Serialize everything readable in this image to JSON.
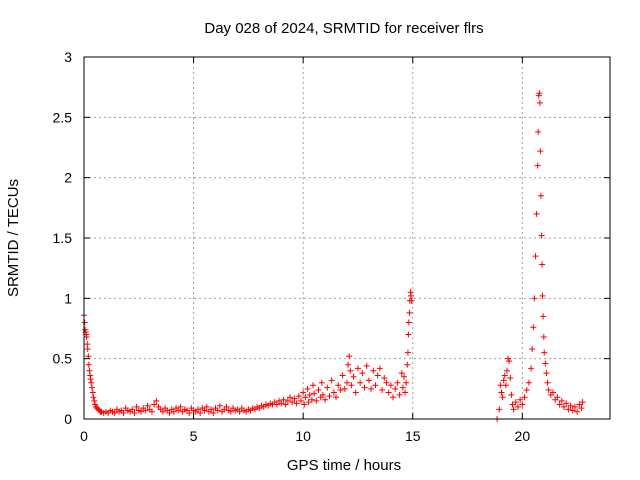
{
  "chart_data": {
    "type": "scatter",
    "title": "Day 028 of 2024, SRMTID for receiver flrs",
    "xlabel": "GPS time / hours",
    "ylabel": "SRMTID / TECUs",
    "xlim": [
      0,
      24
    ],
    "ylim": [
      0,
      3
    ],
    "xticks": [
      0,
      5,
      10,
      15,
      20
    ],
    "xtick_labels": [
      "0",
      "5",
      "10",
      "15",
      "20"
    ],
    "yticks": [
      0,
      0.5,
      1,
      1.5,
      2,
      2.5,
      3
    ],
    "ytick_labels": [
      "0",
      "0.5",
      "1",
      "1.5",
      "2",
      "2.5",
      "3"
    ],
    "grid": true,
    "marker": "+",
    "color": "#ff0000",
    "series": [
      {
        "name": "SRMTID",
        "points": [
          [
            0.0,
            0.86
          ],
          [
            0.03,
            0.8
          ],
          [
            0.05,
            0.74
          ],
          [
            0.08,
            0.72
          ],
          [
            0.1,
            0.7
          ],
          [
            0.12,
            0.68
          ],
          [
            0.15,
            0.62
          ],
          [
            0.17,
            0.58
          ],
          [
            0.2,
            0.52
          ],
          [
            0.22,
            0.45
          ],
          [
            0.25,
            0.4
          ],
          [
            0.28,
            0.36
          ],
          [
            0.3,
            0.33
          ],
          [
            0.33,
            0.3
          ],
          [
            0.36,
            0.26
          ],
          [
            0.4,
            0.22
          ],
          [
            0.43,
            0.18
          ],
          [
            0.47,
            0.15
          ],
          [
            0.5,
            0.12
          ],
          [
            0.55,
            0.1
          ],
          [
            0.6,
            0.09
          ],
          [
            0.65,
            0.08
          ],
          [
            0.7,
            0.07
          ],
          [
            0.75,
            0.06
          ],
          [
            0.8,
            0.06
          ],
          [
            0.9,
            0.05
          ],
          [
            1.0,
            0.06
          ],
          [
            1.1,
            0.05
          ],
          [
            1.2,
            0.07
          ],
          [
            1.3,
            0.06
          ],
          [
            1.4,
            0.05
          ],
          [
            1.5,
            0.08
          ],
          [
            1.6,
            0.06
          ],
          [
            1.7,
            0.07
          ],
          [
            1.8,
            0.05
          ],
          [
            1.9,
            0.09
          ],
          [
            2.0,
            0.07
          ],
          [
            2.1,
            0.06
          ],
          [
            2.2,
            0.08
          ],
          [
            2.3,
            0.05
          ],
          [
            2.4,
            0.1
          ],
          [
            2.5,
            0.07
          ],
          [
            2.6,
            0.06
          ],
          [
            2.7,
            0.09
          ],
          [
            2.8,
            0.07
          ],
          [
            2.9,
            0.11
          ],
          [
            3.0,
            0.08
          ],
          [
            3.1,
            0.06
          ],
          [
            3.2,
            0.12
          ],
          [
            3.3,
            0.15
          ],
          [
            3.4,
            0.1
          ],
          [
            3.5,
            0.08
          ],
          [
            3.6,
            0.06
          ],
          [
            3.7,
            0.09
          ],
          [
            3.8,
            0.07
          ],
          [
            3.9,
            0.05
          ],
          [
            4.0,
            0.08
          ],
          [
            4.1,
            0.06
          ],
          [
            4.2,
            0.09
          ],
          [
            4.3,
            0.07
          ],
          [
            4.4,
            0.1
          ],
          [
            4.5,
            0.06
          ],
          [
            4.6,
            0.08
          ],
          [
            4.7,
            0.07
          ],
          [
            4.8,
            0.05
          ],
          [
            4.9,
            0.09
          ],
          [
            5.0,
            0.07
          ],
          [
            5.1,
            0.06
          ],
          [
            5.2,
            0.08
          ],
          [
            5.3,
            0.05
          ],
          [
            5.4,
            0.09
          ],
          [
            5.5,
            0.07
          ],
          [
            5.6,
            0.1
          ],
          [
            5.7,
            0.06
          ],
          [
            5.8,
            0.08
          ],
          [
            5.9,
            0.05
          ],
          [
            6.0,
            0.09
          ],
          [
            6.1,
            0.07
          ],
          [
            6.2,
            0.11
          ],
          [
            6.3,
            0.06
          ],
          [
            6.4,
            0.08
          ],
          [
            6.5,
            0.1
          ],
          [
            6.6,
            0.07
          ],
          [
            6.7,
            0.06
          ],
          [
            6.8,
            0.09
          ],
          [
            6.9,
            0.07
          ],
          [
            7.0,
            0.08
          ],
          [
            7.1,
            0.06
          ],
          [
            7.2,
            0.09
          ],
          [
            7.3,
            0.07
          ],
          [
            7.4,
            0.06
          ],
          [
            7.5,
            0.08
          ],
          [
            7.6,
            0.07
          ],
          [
            7.7,
            0.09
          ],
          [
            7.8,
            0.08
          ],
          [
            7.9,
            0.1
          ],
          [
            8.0,
            0.09
          ],
          [
            8.1,
            0.11
          ],
          [
            8.2,
            0.1
          ],
          [
            8.3,
            0.12
          ],
          [
            8.4,
            0.11
          ],
          [
            8.5,
            0.13
          ],
          [
            8.6,
            0.12
          ],
          [
            8.7,
            0.14
          ],
          [
            8.8,
            0.12
          ],
          [
            8.9,
            0.15
          ],
          [
            9.0,
            0.13
          ],
          [
            9.1,
            0.16
          ],
          [
            9.2,
            0.12
          ],
          [
            9.3,
            0.15
          ],
          [
            9.4,
            0.18
          ],
          [
            9.5,
            0.14
          ],
          [
            9.6,
            0.17
          ],
          [
            9.7,
            0.13
          ],
          [
            9.8,
            0.19
          ],
          [
            9.9,
            0.15
          ],
          [
            10.0,
            0.22
          ],
          [
            10.05,
            0.12
          ],
          [
            10.1,
            0.18
          ],
          [
            10.2,
            0.25
          ],
          [
            10.25,
            0.14
          ],
          [
            10.3,
            0.2
          ],
          [
            10.4,
            0.16
          ],
          [
            10.45,
            0.28
          ],
          [
            10.5,
            0.21
          ],
          [
            10.6,
            0.15
          ],
          [
            10.7,
            0.24
          ],
          [
            10.8,
            0.18
          ],
          [
            10.85,
            0.3
          ],
          [
            10.9,
            0.2
          ],
          [
            11.0,
            0.16
          ],
          [
            11.1,
            0.26
          ],
          [
            11.2,
            0.19
          ],
          [
            11.3,
            0.32
          ],
          [
            11.4,
            0.22
          ],
          [
            11.5,
            0.18
          ],
          [
            11.6,
            0.28
          ],
          [
            11.7,
            0.24
          ],
          [
            11.8,
            0.36
          ],
          [
            11.9,
            0.25
          ],
          [
            12.0,
            0.3
          ],
          [
            12.05,
            0.45
          ],
          [
            12.1,
            0.52
          ],
          [
            12.15,
            0.4
          ],
          [
            12.2,
            0.28
          ],
          [
            12.3,
            0.35
          ],
          [
            12.4,
            0.22
          ],
          [
            12.5,
            0.42
          ],
          [
            12.6,
            0.3
          ],
          [
            12.7,
            0.38
          ],
          [
            12.8,
            0.26
          ],
          [
            12.9,
            0.44
          ],
          [
            13.0,
            0.32
          ],
          [
            13.1,
            0.25
          ],
          [
            13.2,
            0.4
          ],
          [
            13.3,
            0.28
          ],
          [
            13.4,
            0.36
          ],
          [
            13.5,
            0.42
          ],
          [
            13.6,
            0.24
          ],
          [
            13.7,
            0.34
          ],
          [
            13.8,
            0.3
          ],
          [
            13.9,
            0.22
          ],
          [
            14.0,
            0.28
          ],
          [
            14.1,
            0.18
          ],
          [
            14.2,
            0.25
          ],
          [
            14.3,
            0.3
          ],
          [
            14.4,
            0.2
          ],
          [
            14.5,
            0.38
          ],
          [
            14.55,
            0.26
          ],
          [
            14.6,
            0.35
          ],
          [
            14.65,
            0.22
          ],
          [
            14.7,
            0.3
          ],
          [
            14.75,
            0.45
          ],
          [
            14.78,
            0.55
          ],
          [
            14.8,
            0.7
          ],
          [
            14.82,
            0.8
          ],
          [
            14.85,
            0.88
          ],
          [
            14.87,
            0.98
          ],
          [
            14.9,
            1.05
          ],
          [
            14.92,
            1.02
          ],
          [
            14.95,
            0.98
          ],
          [
            18.85,
            0.0
          ],
          [
            18.95,
            0.08
          ],
          [
            19.0,
            0.28
          ],
          [
            19.05,
            0.22
          ],
          [
            19.1,
            0.18
          ],
          [
            19.15,
            0.32
          ],
          [
            19.2,
            0.36
          ],
          [
            19.25,
            0.28
          ],
          [
            19.3,
            0.4
          ],
          [
            19.35,
            0.5
          ],
          [
            19.4,
            0.48
          ],
          [
            19.45,
            0.34
          ],
          [
            19.5,
            0.2
          ],
          [
            19.55,
            0.12
          ],
          [
            19.6,
            0.08
          ],
          [
            19.7,
            0.14
          ],
          [
            19.8,
            0.1
          ],
          [
            19.9,
            0.16
          ],
          [
            20.0,
            0.12
          ],
          [
            20.1,
            0.18
          ],
          [
            20.2,
            0.24
          ],
          [
            20.3,
            0.3
          ],
          [
            20.4,
            0.42
          ],
          [
            20.45,
            0.58
          ],
          [
            20.5,
            0.76
          ],
          [
            20.55,
            1.0
          ],
          [
            20.6,
            1.35
          ],
          [
            20.65,
            1.7
          ],
          [
            20.7,
            2.1
          ],
          [
            20.72,
            2.38
          ],
          [
            20.75,
            2.68
          ],
          [
            20.78,
            2.7
          ],
          [
            20.8,
            2.62
          ],
          [
            20.82,
            2.22
          ],
          [
            20.85,
            1.85
          ],
          [
            20.88,
            1.52
          ],
          [
            20.9,
            1.28
          ],
          [
            20.92,
            1.02
          ],
          [
            20.95,
            0.85
          ],
          [
            20.98,
            0.68
          ],
          [
            21.0,
            0.55
          ],
          [
            21.05,
            0.46
          ],
          [
            21.1,
            0.38
          ],
          [
            21.15,
            0.3
          ],
          [
            21.2,
            0.24
          ],
          [
            21.3,
            0.2
          ],
          [
            21.4,
            0.22
          ],
          [
            21.5,
            0.16
          ],
          [
            21.6,
            0.18
          ],
          [
            21.7,
            0.12
          ],
          [
            21.8,
            0.15
          ],
          [
            21.9,
            0.1
          ],
          [
            22.0,
            0.13
          ],
          [
            22.1,
            0.08
          ],
          [
            22.2,
            0.11
          ],
          [
            22.3,
            0.07
          ],
          [
            22.4,
            0.1
          ],
          [
            22.5,
            0.06
          ],
          [
            22.6,
            0.12
          ],
          [
            22.7,
            0.09
          ],
          [
            22.75,
            0.14
          ]
        ]
      }
    ]
  }
}
